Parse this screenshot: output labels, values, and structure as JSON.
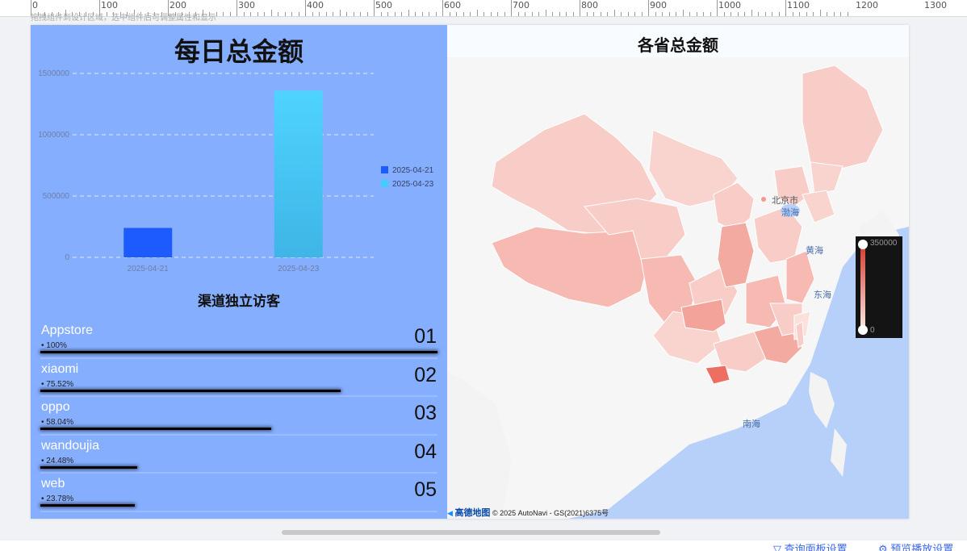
{
  "ruler": {
    "labels": [
      "0",
      "100",
      "200",
      "300",
      "400",
      "500",
      "600",
      "700",
      "800",
      "900",
      "1000",
      "1100",
      "1200",
      "1300"
    ]
  },
  "breadcrumb": "拖拽组件到设计区域，选中组件后可调整属性和显示",
  "left_panel": {
    "title": "每日总金额",
    "chart_data": {
      "type": "bar",
      "categories": [
        "2025-04-21",
        "2025-04-23"
      ],
      "values": [
        240000,
        1360000
      ],
      "ylim": [
        0,
        1500000
      ],
      "yticks": [
        "0",
        "500000",
        "1000000",
        "1500000"
      ],
      "legend": [
        "2025-04-21",
        "2025-04-23"
      ],
      "legend_position": "right",
      "grid": "dashed",
      "colors": [
        "#1e5bff",
        "#45ccff"
      ]
    },
    "ranking": {
      "title": "渠道独立访客",
      "items": [
        {
          "name": "Appstore",
          "percent": "• 100%",
          "rank": "01",
          "value": 100
        },
        {
          "name": "xiaomi",
          "percent": "• 75.52%",
          "rank": "02",
          "value": 75.52
        },
        {
          "name": "oppo",
          "percent": "• 58.04%",
          "rank": "03",
          "value": 58.04
        },
        {
          "name": "wandoujia",
          "percent": "• 24.48%",
          "rank": "04",
          "value": 24.48
        },
        {
          "name": "web",
          "percent": "• 23.78%",
          "rank": "05",
          "value": 23.78
        }
      ]
    }
  },
  "right_panel": {
    "title": "各省总金额",
    "labels": {
      "beijing": "北京市",
      "bohai": "渤海",
      "huanghai": "黄海",
      "donghai": "东海",
      "nanhai": "南海"
    },
    "visual_map": {
      "max": "350000",
      "min": "0",
      "colors": [
        "#d43b2e",
        "#fde9e6"
      ]
    },
    "attribution": {
      "logo": "高德地图",
      "text": "© 2025 AutoNavi - GS(2021)6375号"
    }
  },
  "bottom_bar": {
    "query_settings": "查询面板设置",
    "preview_settings": "预览播放设置"
  }
}
